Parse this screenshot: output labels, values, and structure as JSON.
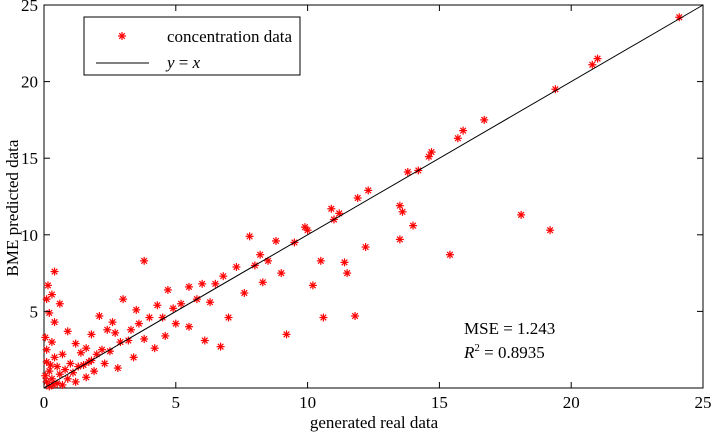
{
  "chart_data": {
    "type": "scatter",
    "xlabel": "generated real data",
    "ylabel": "BME predicted data",
    "xlim": [
      0,
      25
    ],
    "ylim": [
      0,
      25
    ],
    "xticks": [
      "0",
      "5",
      "10",
      "15",
      "20",
      "25"
    ],
    "yticks": [
      "5",
      "10",
      "15",
      "20",
      "25"
    ],
    "grid": false,
    "legend": {
      "placement": "top-left",
      "entries": [
        {
          "label": "concentration data",
          "marker": "asterisk",
          "color": "#ff0000"
        },
        {
          "label_prefix": "y",
          "label_eq": " = ",
          "label_suffix": "x",
          "marker": "line",
          "color": "#000000"
        }
      ]
    },
    "annotations": {
      "mse": "MSE = 1.243",
      "r2_prefix": "R",
      "r2_exp": "2",
      "r2_value": " = 0.8935"
    },
    "series": [
      {
        "name": "concentration data",
        "color": "#ff0000",
        "marker": "asterisk",
        "points": [
          [
            24.1,
            24.2
          ],
          [
            21.0,
            21.5
          ],
          [
            20.8,
            21.1
          ],
          [
            19.4,
            19.5
          ],
          [
            19.2,
            10.3
          ],
          [
            18.1,
            11.3
          ],
          [
            16.7,
            17.5
          ],
          [
            15.9,
            16.8
          ],
          [
            15.7,
            16.3
          ],
          [
            15.4,
            8.7
          ],
          [
            14.7,
            15.4
          ],
          [
            14.6,
            15.1
          ],
          [
            14.2,
            14.2
          ],
          [
            14.0,
            10.6
          ],
          [
            13.8,
            14.1
          ],
          [
            13.6,
            11.5
          ],
          [
            13.5,
            11.9
          ],
          [
            13.5,
            9.7
          ],
          [
            12.3,
            12.9
          ],
          [
            12.2,
            9.2
          ],
          [
            11.9,
            12.4
          ],
          [
            11.8,
            4.7
          ],
          [
            11.5,
            7.5
          ],
          [
            11.4,
            8.2
          ],
          [
            11.2,
            11.4
          ],
          [
            11.0,
            11.0
          ],
          [
            10.9,
            11.7
          ],
          [
            10.6,
            4.6
          ],
          [
            10.5,
            8.3
          ],
          [
            10.2,
            6.7
          ],
          [
            10.0,
            10.3
          ],
          [
            9.9,
            10.5
          ],
          [
            9.5,
            9.5
          ],
          [
            9.2,
            3.5
          ],
          [
            9.0,
            7.5
          ],
          [
            8.8,
            9.6
          ],
          [
            8.5,
            8.3
          ],
          [
            8.3,
            6.9
          ],
          [
            8.2,
            8.7
          ],
          [
            8.0,
            8.0
          ],
          [
            7.8,
            9.9
          ],
          [
            7.6,
            6.2
          ],
          [
            7.3,
            7.9
          ],
          [
            7.0,
            4.6
          ],
          [
            6.8,
            7.3
          ],
          [
            6.7,
            2.7
          ],
          [
            6.5,
            6.8
          ],
          [
            6.3,
            5.6
          ],
          [
            6.1,
            3.1
          ],
          [
            6.0,
            6.8
          ],
          [
            5.8,
            5.8
          ],
          [
            5.5,
            6.6
          ],
          [
            5.5,
            4.0
          ],
          [
            5.2,
            5.5
          ],
          [
            5.0,
            4.2
          ],
          [
            4.9,
            5.2
          ],
          [
            4.7,
            6.4
          ],
          [
            4.6,
            3.4
          ],
          [
            4.5,
            4.6
          ],
          [
            4.3,
            5.4
          ],
          [
            4.2,
            2.6
          ],
          [
            4.0,
            4.6
          ],
          [
            3.8,
            8.3
          ],
          [
            3.8,
            3.2
          ],
          [
            3.6,
            4.2
          ],
          [
            3.5,
            5.1
          ],
          [
            3.4,
            2.0
          ],
          [
            3.3,
            3.8
          ],
          [
            3.2,
            3.1
          ],
          [
            3.0,
            5.8
          ],
          [
            2.9,
            3.0
          ],
          [
            2.8,
            1.3
          ],
          [
            2.7,
            3.6
          ],
          [
            2.6,
            4.3
          ],
          [
            2.5,
            2.4
          ],
          [
            2.4,
            3.8
          ],
          [
            2.3,
            1.6
          ],
          [
            2.2,
            2.5
          ],
          [
            2.1,
            4.7
          ],
          [
            2.0,
            2.2
          ],
          [
            1.9,
            1.1
          ],
          [
            1.8,
            3.5
          ],
          [
            1.8,
            1.8
          ],
          [
            1.7,
            1.7
          ],
          [
            1.6,
            2.6
          ],
          [
            1.6,
            0.7
          ],
          [
            1.5,
            1.5
          ],
          [
            1.4,
            2.3
          ],
          [
            1.3,
            1.4
          ],
          [
            1.2,
            0.4
          ],
          [
            1.2,
            2.9
          ],
          [
            1.1,
            1.0
          ],
          [
            1.0,
            1.6
          ],
          [
            0.9,
            0.6
          ],
          [
            0.9,
            3.7
          ],
          [
            0.8,
            1.2
          ],
          [
            0.7,
            0.2
          ],
          [
            0.7,
            2.2
          ],
          [
            0.6,
            0.9
          ],
          [
            0.6,
            5.5
          ],
          [
            0.5,
            1.4
          ],
          [
            0.5,
            0.3
          ],
          [
            0.4,
            7.6
          ],
          [
            0.4,
            4.3
          ],
          [
            0.4,
            2.0
          ],
          [
            0.3,
            6.1
          ],
          [
            0.3,
            0.6
          ],
          [
            0.3,
            3.0
          ],
          [
            0.2,
            1.1
          ],
          [
            0.2,
            4.9
          ],
          [
            0.2,
            0.1
          ],
          [
            0.1,
            2.5
          ],
          [
            0.1,
            0.4
          ],
          [
            0.1,
            5.8
          ],
          [
            0.1,
            1.7
          ],
          [
            0.05,
            3.3
          ],
          [
            0.05,
            0.8
          ],
          [
            0.15,
            6.7
          ],
          [
            0.25,
            1.5
          ],
          [
            0.35,
            0.2
          ]
        ]
      },
      {
        "name": "y = x",
        "color": "#000000",
        "marker": "line",
        "x": [
          0,
          25
        ],
        "y": [
          0,
          25
        ]
      }
    ]
  }
}
